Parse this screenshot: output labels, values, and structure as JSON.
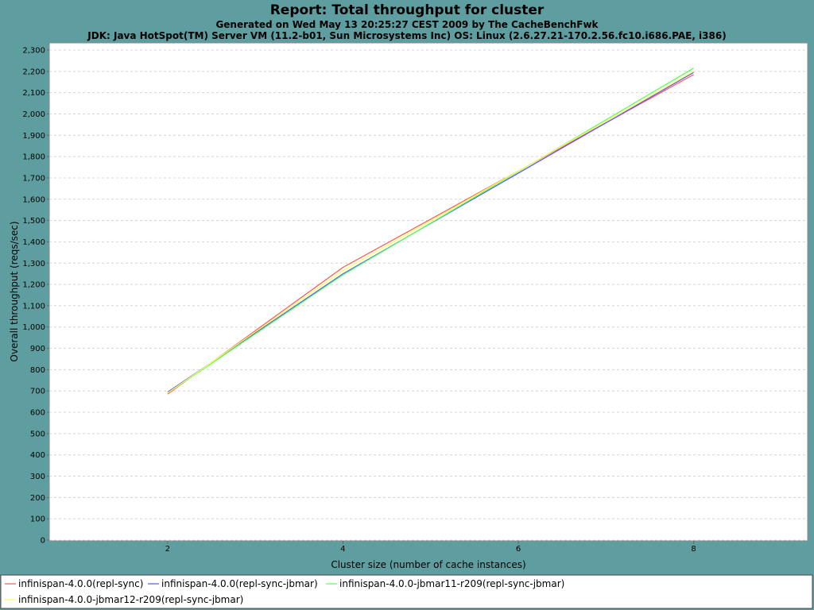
{
  "chart_data": {
    "type": "line",
    "title": "Report: Total throughput for cluster",
    "subtitles": [
      "Generated on Wed May 13 20:25:27 CEST 2009 by The CacheBenchFwk",
      "JDK: Java HotSpot(TM) Server VM (11.2-b01, Sun Microsystems Inc) OS: Linux (2.6.27.21-170.2.56.fc10.i686.PAE, i386)"
    ],
    "xlabel": "Cluster size (number of cache instances)",
    "ylabel": "Overall throughput (reqs/sec)",
    "x": [
      2,
      4,
      8
    ],
    "x_ticks": [
      "2",
      "4",
      "6",
      "8"
    ],
    "x_tick_values": [
      2,
      4,
      6,
      8
    ],
    "xlim": [
      0.65,
      9.3
    ],
    "ylim": [
      0,
      2330
    ],
    "y_ticks": [
      0,
      100,
      200,
      300,
      400,
      500,
      600,
      700,
      800,
      900,
      1000,
      1100,
      1200,
      1300,
      1400,
      1500,
      1600,
      1700,
      1800,
      1900,
      2000,
      2100,
      2200,
      2300
    ],
    "y_tick_labels": [
      "0",
      "100",
      "200",
      "300",
      "400",
      "500",
      "600",
      "700",
      "800",
      "900",
      "1,000",
      "1,100",
      "1,200",
      "1,300",
      "1,400",
      "1,500",
      "1,600",
      "1,700",
      "1,800",
      "1,900",
      "2,000",
      "2,100",
      "2,200",
      "2,300"
    ],
    "grid": true,
    "legend_position": "bottom",
    "series": [
      {
        "name": "infinispan-4.0.0(repl-sync)",
        "color": "#ff5555",
        "values": [
          685,
          1280,
          2185
        ]
      },
      {
        "name": "infinispan-4.0.0(repl-sync-jbmar)",
        "color": "#5555ff",
        "values": [
          695,
          1250,
          2195
        ]
      },
      {
        "name": "infinispan-4.0.0-jbmar11-r209(repl-sync-jbmar)",
        "color": "#55ff55",
        "values": [
          690,
          1245,
          2215
        ]
      },
      {
        "name": "infinispan-4.0.0-jbmar12-r209(repl-sync-jbmar)",
        "color": "#ffff55",
        "values": [
          690,
          1265,
          2200
        ]
      }
    ]
  }
}
